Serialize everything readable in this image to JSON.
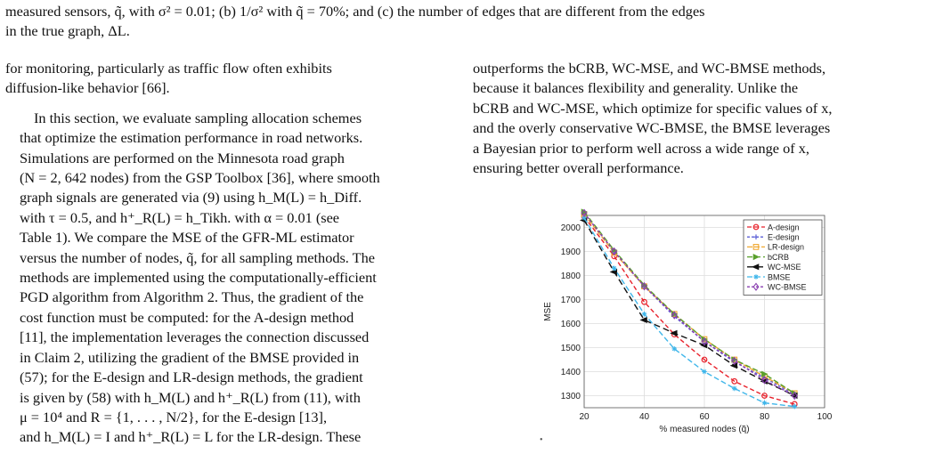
{
  "caption": {
    "line1": "measured sensors, q̃, with σ² = 0.01; (b) 1/σ² with q̃ = 70%; and (c) the number of edges that are different from the edges",
    "line2": "in the true graph, ΔL."
  },
  "left_column": {
    "p1": [
      "for monitoring, particularly as traffic flow often exhibits",
      "diffusion-like behavior [66]."
    ],
    "p2": [
      "In this section, we evaluate sampling allocation schemes",
      "that optimize the estimation performance in road networks.",
      "Simulations are performed on the Minnesota road graph",
      "(N = 2, 642 nodes) from the GSP Toolbox [36], where smooth",
      "graph signals are generated via (9) using h_M(L) = h_Diff.",
      "with τ = 0.5, and h⁺_R(L) = h_Tikh. with α = 0.01 (see",
      "Table 1). We compare the MSE of the GFR-ML estimator",
      "versus the number of nodes, q̃, for all sampling methods. The",
      "methods are implemented using the computationally-efficient",
      "PGD algorithm from Algorithm 2. Thus, the gradient of the",
      "cost function must be computed: for the A-design method",
      "[11], the implementation leverages the connection discussed",
      "in Claim 2, utilizing the gradient of the BMSE provided in",
      "(57); for the E-design and LR-design methods, the gradient",
      "is given by (58) with h_M(L) and h⁺_R(L) from (11), with",
      "μ = 10⁴ and R = {1, . . . , N/2}, for the E-design [13],",
      "and h_M(L) = I and h⁺_R(L) = L for the LR-design. These"
    ]
  },
  "right_column": {
    "p1": [
      "outperforms the bCRB, WC-MSE, and WC-BMSE methods,",
      "because it balances flexibility and generality. Unlike the",
      "bCRB and WC-MSE, which optimize for specific values of x,",
      "and the overly conservative WC-BMSE, the BMSE leverages",
      "a Bayesian prior to perform well across a wide range of x,",
      "ensuring better overall performance."
    ]
  },
  "chart_data": {
    "type": "line",
    "title": "",
    "xlabel": "% measured nodes (q̃)",
    "ylabel": "MSE",
    "xlim": [
      20,
      100
    ],
    "ylim": [
      1250,
      2050
    ],
    "xticks": [
      20,
      40,
      60,
      80,
      100
    ],
    "yticks": [
      1300,
      1400,
      1500,
      1600,
      1700,
      1800,
      1900,
      2000
    ],
    "grid": true,
    "legend_position": "top-right",
    "x": [
      20,
      30,
      40,
      50,
      60,
      70,
      80,
      90
    ],
    "series": [
      {
        "name": "A-design",
        "color": "#e8212b",
        "dash": "5,3",
        "marker": "circle",
        "values": [
          2045,
          1880,
          1690,
          1555,
          1450,
          1360,
          1300,
          1265
        ]
      },
      {
        "name": "E-design",
        "color": "#5b5fd6",
        "dash": "3,2",
        "marker": "plus",
        "values": [
          2060,
          1900,
          1755,
          1630,
          1525,
          1440,
          1375,
          1305
        ]
      },
      {
        "name": "LR-design",
        "color": "#f0a830",
        "dash": "6,2",
        "marker": "square",
        "values": [
          2055,
          1895,
          1755,
          1640,
          1535,
          1450,
          1380,
          1310
        ]
      },
      {
        "name": "bCRB",
        "color": "#5aa02c",
        "dash": "6,3",
        "marker": "triangle",
        "values": [
          2065,
          1905,
          1760,
          1640,
          1535,
          1450,
          1390,
          1310
        ]
      },
      {
        "name": "WC-MSE",
        "color": "#111111",
        "dash": "7,4",
        "marker": "triangle-left",
        "values": [
          2030,
          1815,
          1615,
          1560,
          1510,
          1425,
          1360,
          1300
        ]
      },
      {
        "name": "BMSE",
        "color": "#3fb6ea",
        "dash": "6,3",
        "marker": "star",
        "values": [
          2040,
          1830,
          1640,
          1495,
          1400,
          1330,
          1270,
          1255
        ]
      },
      {
        "name": "WC-BMSE",
        "color": "#8a3fb0",
        "dash": "3,2",
        "marker": "diamond",
        "values": [
          2060,
          1900,
          1755,
          1635,
          1525,
          1445,
          1365,
          1300
        ]
      }
    ]
  }
}
